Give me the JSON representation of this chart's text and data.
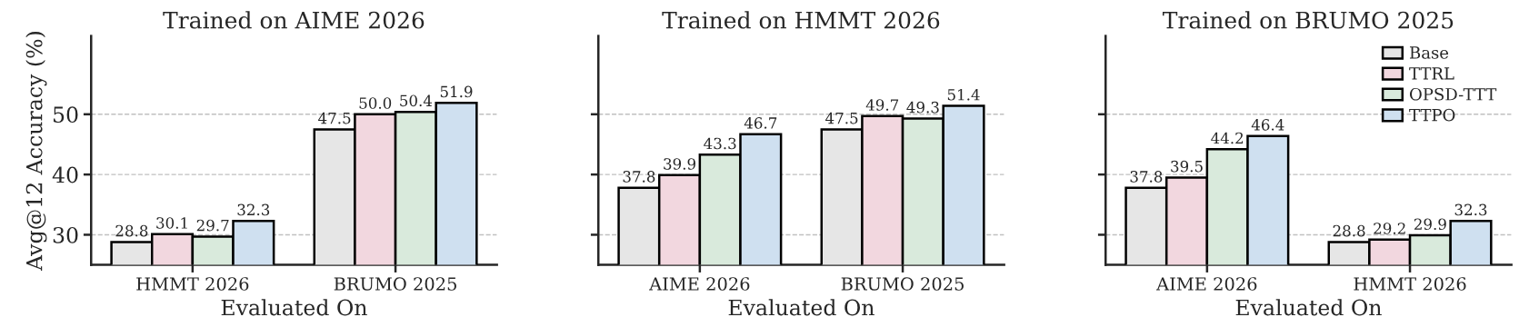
{
  "chart_data": [
    {
      "type": "bar",
      "title": "Trained on AIME 2026",
      "xlabel": "Evaluated On",
      "ylabel": "Avg@12 Accuracy (%)",
      "categories": [
        "HMMT 2026",
        "BRUMO 2025"
      ],
      "series": [
        {
          "color": "#e6e6e6",
          "values": [
            28.8,
            47.5
          ]
        },
        {
          "color": "#f2d7df",
          "values": [
            30.1,
            50.0
          ],
          "value_labels": [
            "30.1",
            "50.0"
          ]
        },
        {
          "color": "#d9eadc",
          "values": [
            29.7,
            50.4
          ]
        },
        {
          "color": "#cfe0f0",
          "values": [
            32.3,
            51.9
          ]
        }
      ],
      "ylim": [
        25,
        63
      ],
      "yticks": [
        30,
        40,
        50
      ],
      "grid": "y",
      "data_labels": true
    },
    {
      "type": "bar",
      "title": "Trained on HMMT 2026",
      "xlabel": "Evaluated On",
      "categories": [
        "AIME 2026",
        "BRUMO 2025"
      ],
      "series": [
        {
          "color": "#e6e6e6",
          "values": [
            37.8,
            47.5
          ]
        },
        {
          "color": "#f2d7df",
          "values": [
            39.9,
            49.7
          ]
        },
        {
          "color": "#d9eadc",
          "values": [
            43.3,
            49.3
          ]
        },
        {
          "color": "#cfe0f0",
          "values": [
            46.7,
            51.4
          ]
        }
      ],
      "ylim": [
        25,
        63
      ],
      "yticks": [
        30,
        40,
        50
      ],
      "grid": "y",
      "data_labels": true,
      "tick_labels": "x"
    },
    {
      "type": "bar",
      "title": "Trained on BRUMO 2025",
      "xlabel": "Evaluated On",
      "categories": [
        "AIME 2026",
        "HMMT 2026"
      ],
      "series": [
        {
          "name": "Base",
          "color": "#e6e6e6",
          "values": [
            37.8,
            28.8
          ]
        },
        {
          "name": "TTRL",
          "color": "#f2d7df",
          "values": [
            39.5,
            29.2
          ]
        },
        {
          "name": "OPSD-TTT",
          "color": "#d9eadc",
          "values": [
            44.2,
            29.9
          ]
        },
        {
          "name": "TTPO",
          "color": "#cfe0f0",
          "values": [
            46.4,
            32.3
          ]
        }
      ],
      "ylim": [
        25,
        63
      ],
      "yticks": [
        30,
        40,
        50
      ],
      "grid": "y",
      "data_labels": true,
      "tick_labels": "x",
      "legend": "top right"
    }
  ]
}
